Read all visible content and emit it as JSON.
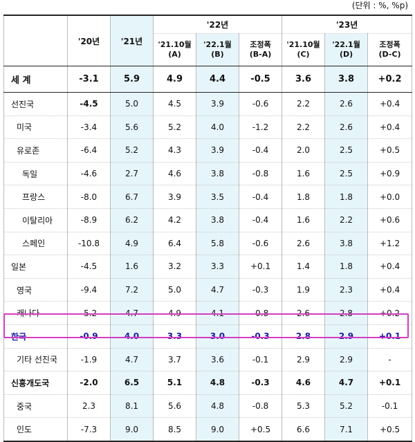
{
  "unit_note": "(단위 : %, %p)",
  "headers": {
    "y2020": "'20년",
    "y2021": "'21년",
    "y2022": "'22년",
    "y2023": "'23년",
    "sub": [
      "'21.10월 (A)",
      "'22.1월 (B)",
      "조정폭 (B-A)",
      "'21.10월 (C)",
      "'22.1월 (D)",
      "조정폭 (D-C)"
    ]
  },
  "rows": [
    {
      "name": "세  계",
      "v": [
        "-3.1",
        "5.9",
        "4.9",
        "4.4",
        "-0.5",
        "3.6",
        "3.8",
        "+0.2"
      ]
    },
    {
      "name": "선진국",
      "v": [
        "-4.5",
        "5.0",
        "4.5",
        "3.9",
        "-0.6",
        "2.2",
        "2.6",
        "+0.4"
      ]
    },
    {
      "name": "미국",
      "v": [
        "-3.4",
        "5.6",
        "5.2",
        "4.0",
        "-1.2",
        "2.2",
        "2.6",
        "+0.4"
      ]
    },
    {
      "name": "유로존",
      "v": [
        "-6.4",
        "5.2",
        "4.3",
        "3.9",
        "-0.4",
        "2.0",
        "2.5",
        "+0.5"
      ]
    },
    {
      "name": "독일",
      "v": [
        "-4.6",
        "2.7",
        "4.6",
        "3.8",
        "-0.8",
        "1.6",
        "2.5",
        "+0.9"
      ]
    },
    {
      "name": "프랑스",
      "v": [
        "-8.0",
        "6.7",
        "3.9",
        "3.5",
        "-0.4",
        "1.8",
        "1.8",
        "+0.0"
      ]
    },
    {
      "name": "이탈리아",
      "v": [
        "-8.9",
        "6.2",
        "4.2",
        "3.8",
        "-0.4",
        "1.6",
        "2.2",
        "+0.6"
      ]
    },
    {
      "name": "스페인",
      "v": [
        "-10.8",
        "4.9",
        "6.4",
        "5.8",
        "-0.6",
        "2.6",
        "3.8",
        "+1.2"
      ]
    },
    {
      "name": "일본",
      "v": [
        "-4.5",
        "1.6",
        "3.2",
        "3.3",
        "+0.1",
        "1.4",
        "1.8",
        "+0.4"
      ]
    },
    {
      "name": "영국",
      "v": [
        "-9.4",
        "7.2",
        "5.0",
        "4.7",
        "-0.3",
        "1.9",
        "2.3",
        "+0.4"
      ]
    },
    {
      "name": "캐나다",
      "v": [
        "-5.2",
        "4.7",
        "4.9",
        "4.1",
        "-0.8",
        "2.6",
        "2.8",
        "+0.2"
      ]
    },
    {
      "name": "한국",
      "v": [
        "-0.9",
        "4.0",
        "3.3",
        "3.0",
        "-0.3",
        "2.8",
        "2.9",
        "+0.1"
      ]
    },
    {
      "name": "기타 선진국",
      "v": [
        "-1.9",
        "4.7",
        "3.7",
        "3.6",
        "-0.1",
        "2.9",
        "2.9",
        "-"
      ]
    },
    {
      "name": "신흥개도국",
      "v": [
        "-2.0",
        "6.5",
        "5.1",
        "4.8",
        "-0.3",
        "4.6",
        "4.7",
        "+0.1"
      ]
    },
    {
      "name": "중국",
      "v": [
        "2.3",
        "8.1",
        "5.6",
        "4.8",
        "-0.8",
        "5.3",
        "5.2",
        "-0.1"
      ]
    },
    {
      "name": "인도",
      "v": [
        "-7.3",
        "9.0",
        "8.5",
        "9.0",
        "+0.5",
        "6.6",
        "7.1",
        "+0.5"
      ]
    }
  ],
  "colors": {
    "shade": "#e6f5fa",
    "highlight_border": "#d43bc3",
    "highlight_text": "#1a1aa0"
  }
}
